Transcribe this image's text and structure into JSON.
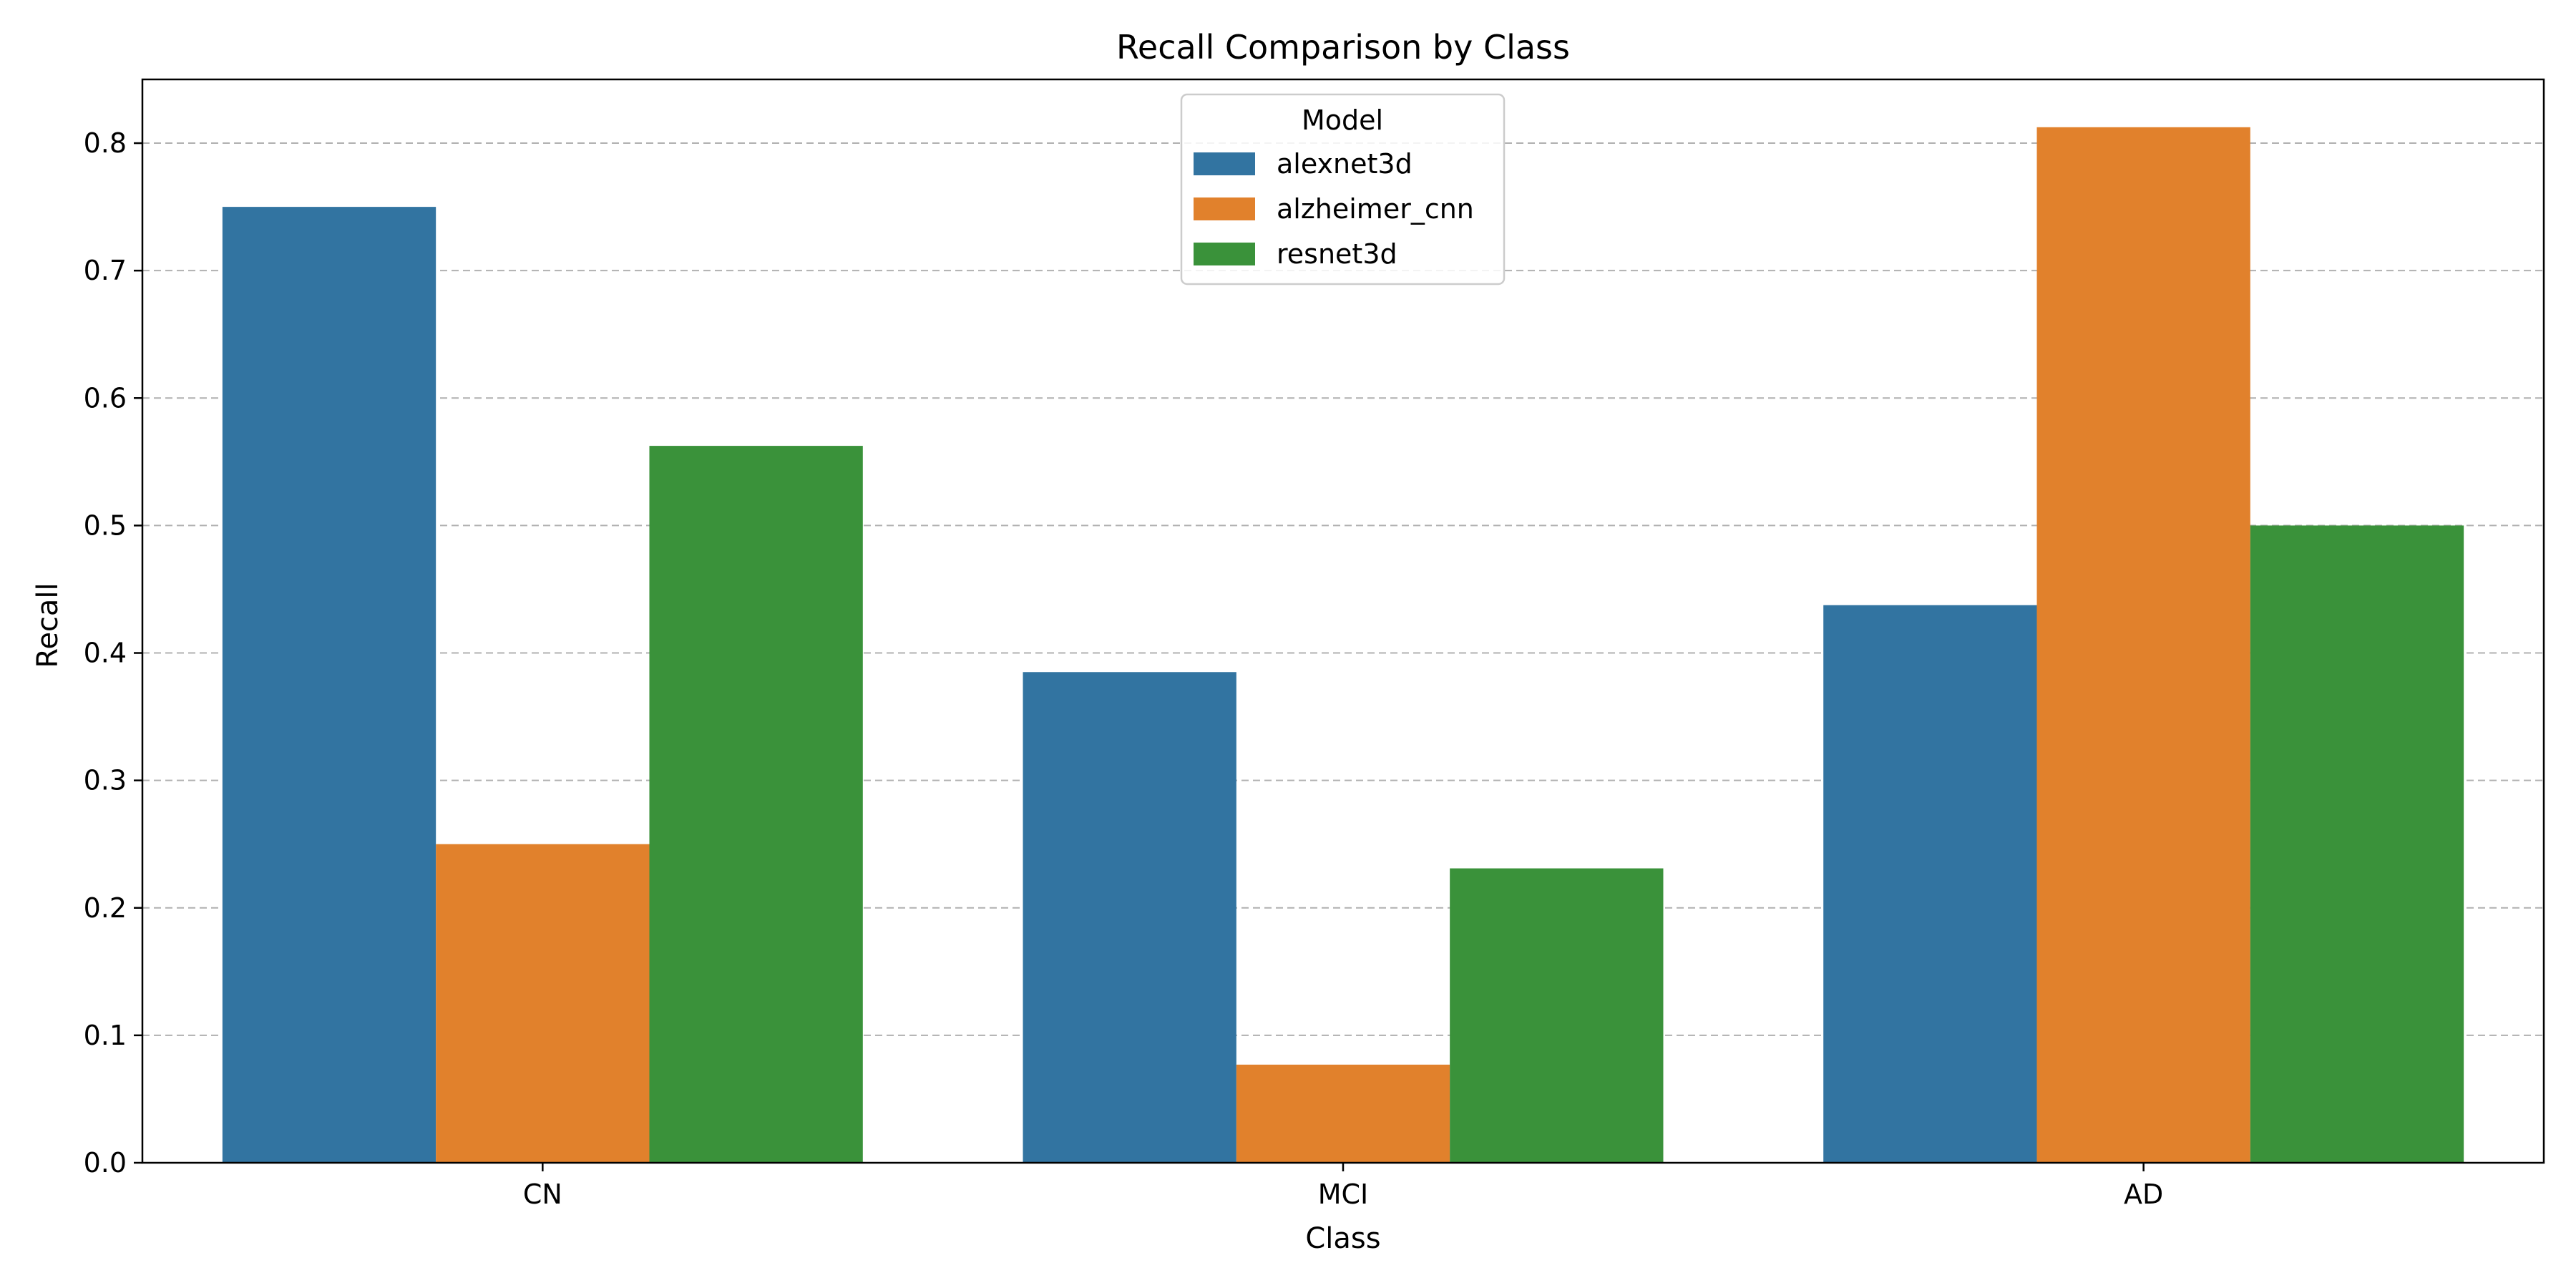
{
  "chart_data": {
    "type": "bar",
    "title": "Recall Comparison by Class",
    "xlabel": "Class",
    "ylabel": "Recall",
    "categories": [
      "CN",
      "MCI",
      "AD"
    ],
    "ylim": [
      0,
      0.85
    ],
    "yticks": [
      "0.0",
      "0.1",
      "0.2",
      "0.3",
      "0.4",
      "0.5",
      "0.6",
      "0.7",
      "0.8"
    ],
    "grid": "horizontal dashed",
    "legend": {
      "title": "Model",
      "placement": "top-center"
    },
    "series": [
      {
        "name": "alexnet3d",
        "color": "#3274a1",
        "values": [
          0.75,
          0.385,
          0.4375
        ]
      },
      {
        "name": "alzheimer_cnn",
        "color": "#e1812c",
        "values": [
          0.25,
          0.077,
          0.8125
        ]
      },
      {
        "name": "resnet3d",
        "color": "#3a923a",
        "values": [
          0.5625,
          0.231,
          0.5
        ]
      }
    ]
  }
}
